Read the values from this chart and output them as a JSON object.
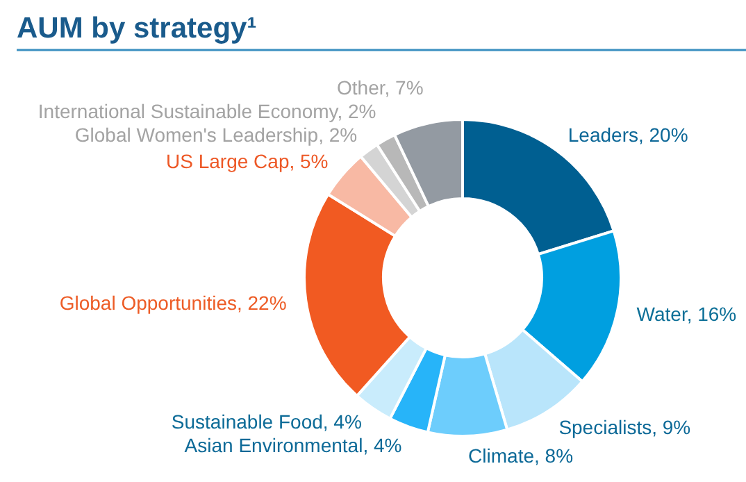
{
  "chart_data": {
    "type": "donut",
    "title": "AUM by strategy¹",
    "categories": [
      "Leaders, 20%",
      "Water, 16%",
      "Specialists, 9%",
      "Climate, 8%",
      "Asian Environmental, 4%",
      "Sustainable Food, 4%",
      "Global Opportunities, 22%",
      "US Large Cap, 5%",
      "Global Women's Leadership, 2%",
      "International Sustainable Economy, 2%",
      "Other, 7%"
    ],
    "values": [
      20,
      16,
      9,
      8,
      4,
      4,
      22,
      5,
      2,
      2,
      7
    ],
    "colors": [
      "#005f91",
      "#009fe0",
      "#b9e5fb",
      "#6dcdfc",
      "#27b4f9",
      "#c9ecfc",
      "#f15a22",
      "#f8b9a4",
      "#d4d4d4",
      "#b8b8b8",
      "#939aa2"
    ]
  }
}
